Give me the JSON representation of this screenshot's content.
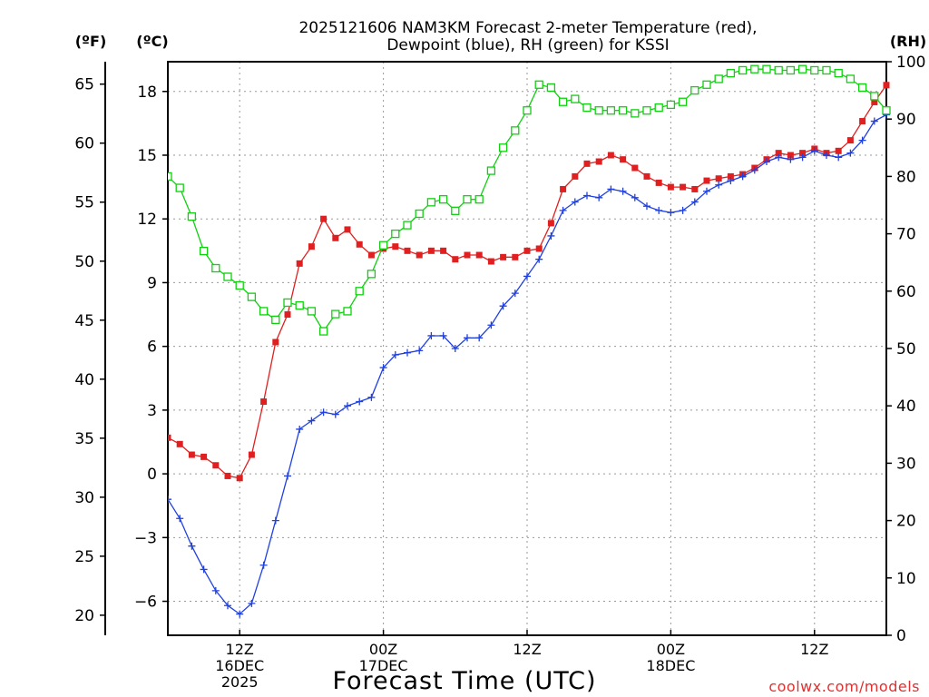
{
  "chart_data": {
    "type": "line",
    "title_line1": "2025121606 NAM3KM Forecast 2-meter Temperature (red),",
    "title_line2": "Dewpoint (blue), RH (green) for KSSI",
    "xlabel": "Forecast Time (UTC)",
    "credit": "coolwx.com/models",
    "units": {
      "fahrenheit": "(ºF)",
      "celsius": "(ºC)",
      "rh": "(RH)"
    },
    "x_range_hours": [
      6,
      66
    ],
    "x_ticks": [
      {
        "hour": 12,
        "line1": "12Z",
        "line2": "16DEC",
        "line3": "2025"
      },
      {
        "hour": 24,
        "line1": "00Z",
        "line2": "17DEC",
        "line3": ""
      },
      {
        "hour": 36,
        "line1": "12Z",
        "line2": "",
        "line3": ""
      },
      {
        "hour": 48,
        "line1": "00Z",
        "line2": "18DEC",
        "line3": ""
      },
      {
        "hour": 60,
        "line1": "12Z",
        "line2": "",
        "line3": ""
      }
    ],
    "y_celsius": {
      "range": [
        -7.6,
        19.4
      ],
      "ticks": [
        "−6",
        "−3",
        "0",
        "3",
        "6",
        "9",
        "12",
        "15",
        "18"
      ],
      "tick_values": [
        -6,
        -3,
        0,
        3,
        6,
        9,
        12,
        15,
        18
      ]
    },
    "y_fahrenheit": {
      "range": [
        18.3,
        66.9
      ],
      "ticks": [
        "20",
        "25",
        "30",
        "35",
        "40",
        "45",
        "50",
        "55",
        "60",
        "65"
      ],
      "tick_values": [
        20,
        25,
        30,
        35,
        40,
        45,
        50,
        55,
        60,
        65
      ]
    },
    "y_rh": {
      "range": [
        0,
        100
      ],
      "ticks": [
        "0",
        "10",
        "20",
        "30",
        "40",
        "50",
        "60",
        "70",
        "80",
        "90",
        "100"
      ],
      "tick_values": [
        0,
        10,
        20,
        30,
        40,
        50,
        60,
        70,
        80,
        90,
        100
      ]
    },
    "series": [
      {
        "name": "Temperature (°C)",
        "axis": "celsius",
        "color": "#e02020",
        "marker": "filled-square",
        "x": [
          6,
          7,
          8,
          9,
          10,
          11,
          12,
          13,
          14,
          15,
          16,
          17,
          18,
          19,
          20,
          21,
          22,
          23,
          24,
          25,
          26,
          27,
          28,
          29,
          30,
          31,
          32,
          33,
          34,
          35,
          36,
          37,
          38,
          39,
          40,
          41,
          42,
          43,
          44,
          45,
          46,
          47,
          48,
          49,
          50,
          51,
          52,
          53,
          54,
          55,
          56,
          57,
          58,
          59,
          60,
          61,
          62,
          63,
          64,
          65,
          66
        ],
        "values": [
          1.7,
          1.4,
          0.9,
          0.8,
          0.4,
          -0.1,
          -0.2,
          0.9,
          3.4,
          6.2,
          7.5,
          9.9,
          10.7,
          12.0,
          11.1,
          11.5,
          10.8,
          10.3,
          10.6,
          10.7,
          10.5,
          10.3,
          10.5,
          10.5,
          10.1,
          10.3,
          10.3,
          10.0,
          10.2,
          10.2,
          10.5,
          10.6,
          11.8,
          13.4,
          14.0,
          14.6,
          14.7,
          15.0,
          14.8,
          14.4,
          14.0,
          13.7,
          13.5,
          13.5,
          13.4,
          13.8,
          13.9,
          14.0,
          14.1,
          14.4,
          14.8,
          15.1,
          15.0,
          15.1,
          15.3,
          15.1,
          15.2,
          15.7,
          16.6,
          17.5,
          18.3
        ]
      },
      {
        "name": "Dewpoint (°C)",
        "axis": "celsius",
        "color": "#2040e0",
        "marker": "plus",
        "x": [
          6,
          7,
          8,
          9,
          10,
          11,
          12,
          13,
          14,
          15,
          16,
          17,
          18,
          19,
          20,
          21,
          22,
          23,
          24,
          25,
          26,
          27,
          28,
          29,
          30,
          31,
          32,
          33,
          34,
          35,
          36,
          37,
          38,
          39,
          40,
          41,
          42,
          43,
          44,
          45,
          46,
          47,
          48,
          49,
          50,
          51,
          52,
          53,
          54,
          55,
          56,
          57,
          58,
          59,
          60,
          61,
          62,
          63,
          64,
          65,
          66
        ],
        "values": [
          -1.2,
          -2.1,
          -3.4,
          -4.5,
          -5.5,
          -6.2,
          -6.6,
          -6.1,
          -4.3,
          -2.2,
          -0.1,
          2.1,
          2.5,
          2.9,
          2.8,
          3.2,
          3.4,
          3.6,
          5.0,
          5.6,
          5.7,
          5.8,
          6.5,
          6.5,
          5.9,
          6.4,
          6.4,
          7.0,
          7.9,
          8.5,
          9.3,
          10.1,
          11.2,
          12.4,
          12.8,
          13.1,
          13.0,
          13.4,
          13.3,
          13.0,
          12.6,
          12.4,
          12.3,
          12.4,
          12.8,
          13.3,
          13.6,
          13.8,
          14.0,
          14.3,
          14.7,
          14.9,
          14.8,
          14.9,
          15.2,
          15.0,
          14.9,
          15.1,
          15.7,
          16.6,
          16.9
        ]
      },
      {
        "name": "RH (%)",
        "axis": "rh",
        "color": "#10d010",
        "marker": "open-square",
        "x": [
          6,
          7,
          8,
          9,
          10,
          11,
          12,
          13,
          14,
          15,
          16,
          17,
          18,
          19,
          20,
          21,
          22,
          23,
          24,
          25,
          26,
          27,
          28,
          29,
          30,
          31,
          32,
          33,
          34,
          35,
          36,
          37,
          38,
          39,
          40,
          41,
          42,
          43,
          44,
          45,
          46,
          47,
          48,
          49,
          50,
          51,
          52,
          53,
          54,
          55,
          56,
          57,
          58,
          59,
          60,
          61,
          62,
          63,
          64,
          65,
          66
        ],
        "values": [
          80,
          78,
          73,
          67,
          64,
          62.5,
          61,
          59,
          56.5,
          55,
          58,
          57.5,
          56.5,
          53,
          56,
          56.5,
          60,
          63,
          68,
          70,
          71.5,
          73.5,
          75.5,
          76,
          74,
          76,
          76,
          81,
          85,
          88,
          91.5,
          96,
          95.5,
          93,
          93.5,
          92,
          91.5,
          91.5,
          91.5,
          91,
          91.5,
          92,
          92.5,
          93,
          95,
          96,
          97,
          98,
          98.5,
          98.7,
          98.7,
          98.5,
          98.5,
          98.7,
          98.5,
          98.5,
          98,
          97,
          95.5,
          94,
          91.5
        ]
      }
    ]
  }
}
